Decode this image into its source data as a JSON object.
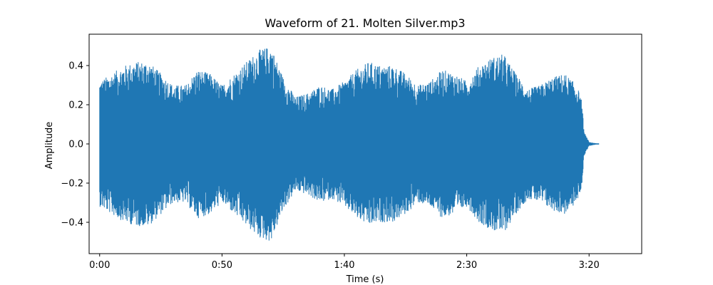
{
  "chart_data": {
    "type": "area",
    "title": "Waveform of 21. Molten Silver.mp3",
    "xlabel": "Time (s)",
    "ylabel": "Amplitude",
    "xlim": [
      -4.3,
      221.5
    ],
    "ylim": [
      -0.56,
      0.56
    ],
    "x_ticks": [
      {
        "value": 0,
        "label": "0:00"
      },
      {
        "value": 50,
        "label": "0:50"
      },
      {
        "value": 100,
        "label": "1:40"
      },
      {
        "value": 150,
        "label": "2:30"
      },
      {
        "value": 200,
        "label": "3:20"
      }
    ],
    "y_ticks": [
      {
        "value": 0.4,
        "label": "0.4"
      },
      {
        "value": 0.2,
        "label": "0.2"
      },
      {
        "value": 0.0,
        "label": "0.0"
      },
      {
        "value": -0.2,
        "label": "−0.2"
      },
      {
        "value": -0.4,
        "label": "−0.4"
      }
    ],
    "color": "#1f77b4",
    "grid": false,
    "series": [
      {
        "envelope_x": [
          0,
          5,
          10,
          15,
          20,
          25,
          30,
          35,
          40,
          45,
          50,
          55,
          60,
          65,
          70,
          75,
          80,
          85,
          90,
          95,
          100,
          105,
          110,
          115,
          120,
          125,
          130,
          135,
          140,
          145,
          150,
          155,
          160,
          165,
          170,
          175,
          180,
          185,
          190,
          195,
          197,
          198,
          200,
          204
        ],
        "envelope_y": [
          0.32,
          0.36,
          0.4,
          0.42,
          0.42,
          0.36,
          0.3,
          0.3,
          0.38,
          0.36,
          0.3,
          0.36,
          0.42,
          0.48,
          0.5,
          0.34,
          0.24,
          0.26,
          0.3,
          0.28,
          0.32,
          0.38,
          0.42,
          0.4,
          0.4,
          0.36,
          0.3,
          0.32,
          0.38,
          0.36,
          0.32,
          0.4,
          0.44,
          0.46,
          0.36,
          0.28,
          0.3,
          0.34,
          0.36,
          0.3,
          0.22,
          0.06,
          0.01,
          0.0
        ]
      }
    ]
  }
}
